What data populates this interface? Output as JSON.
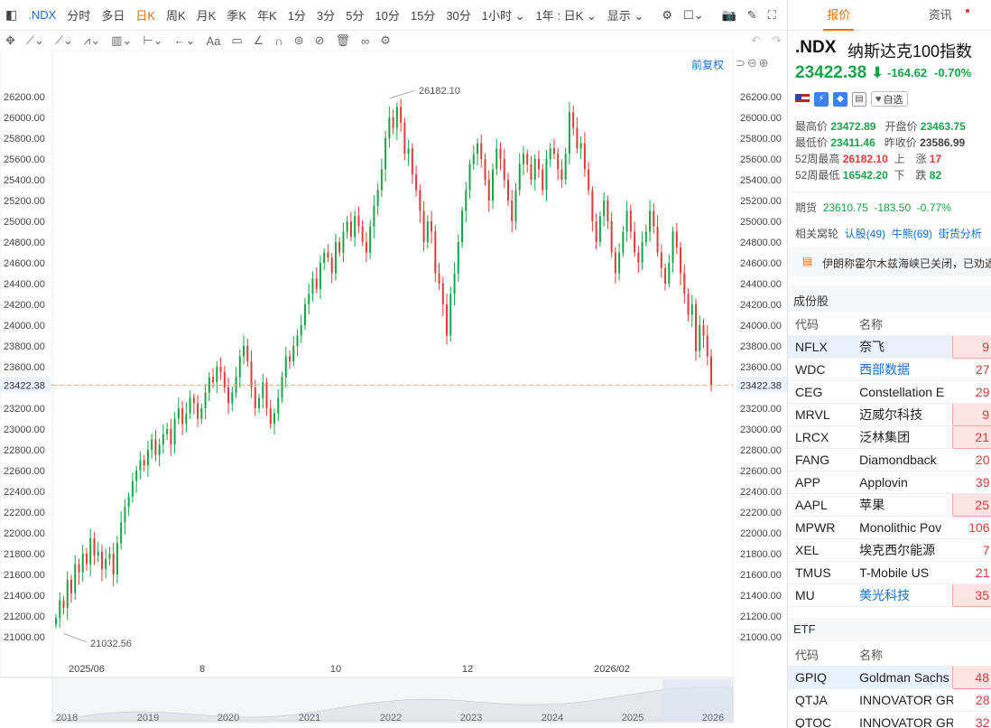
{
  "toolbar": {
    "symbol": ".NDX",
    "items": [
      "分时",
      "多日",
      "日K",
      "周K",
      "月K",
      "季K",
      "年K",
      "1分",
      "3分",
      "5分",
      "10分",
      "15分",
      "30分",
      "1小时 ⌄",
      "1年 : 日K ⌄"
    ],
    "active_item": "日K",
    "display": "显示 ⌄"
  },
  "chart": {
    "restore_label": "前复权",
    "current_price_label": "23422.38",
    "high_label": "26182.10",
    "low_label": "21032.56",
    "x_ticks": [
      "2025/06",
      "8",
      "10",
      "12",
      "2026/02"
    ],
    "overview_years": [
      "2018",
      "2019",
      "2020",
      "2021",
      "2022",
      "2023",
      "2024",
      "2025",
      "2026"
    ]
  },
  "chart_data": {
    "type": "candlestick",
    "y_ticks": [
      "26200.00",
      "26000.00",
      "25800.00",
      "25600.00",
      "25400.00",
      "25200.00",
      "25000.00",
      "24800.00",
      "24600.00",
      "24400.00",
      "24200.00",
      "24000.00",
      "23800.00",
      "23600.00",
      "23400.00",
      "23200.00",
      "23000.00",
      "22800.00",
      "22600.00",
      "22400.00",
      "22200.00",
      "22000.00",
      "21800.00",
      "21600.00",
      "21400.00",
      "21200.00",
      "21000.00"
    ],
    "ylim": [
      21000,
      26200
    ],
    "last_price": 23422.38,
    "period_high": 26182.1,
    "period_low": 21032.56,
    "closes": [
      21180,
      21350,
      21280,
      21550,
      21420,
      21700,
      21620,
      21800,
      21700,
      21950,
      21780,
      21820,
      21650,
      21750,
      21800,
      21600,
      21900,
      22100,
      22250,
      22350,
      22500,
      22600,
      22700,
      22650,
      22800,
      22900,
      22750,
      22850,
      22950,
      23000,
      22850,
      23100,
      23200,
      23050,
      23150,
      23300,
      23250,
      23100,
      23200,
      23350,
      23500,
      23450,
      23600,
      23550,
      23400,
      23250,
      23350,
      23500,
      23700,
      23800,
      23650,
      23400,
      23200,
      23300,
      23450,
      23200,
      23050,
      23150,
      23300,
      23500,
      23700,
      23650,
      23800,
      23900,
      24000,
      24200,
      24300,
      24450,
      24350,
      24600,
      24700,
      24650,
      24500,
      24800,
      24700,
      24900,
      25000,
      24850,
      25050,
      24950,
      24800,
      24700,
      24950,
      25150,
      25300,
      25500,
      25800,
      26000,
      25900,
      26100,
      25950,
      25650,
      25700,
      25450,
      25300,
      25100,
      24800,
      25000,
      24900,
      24500,
      24400,
      24200,
      23900,
      24300,
      24500,
      24800,
      25100,
      25300,
      25550,
      25650,
      25750,
      25600,
      25400,
      25200,
      25500,
      25700,
      25600,
      25400,
      25200,
      25000,
      25300,
      25550,
      25650,
      25550,
      25400,
      25600,
      25500,
      25300,
      25600,
      25700,
      25650,
      25500,
      25400,
      25650,
      26050,
      25900,
      25700,
      25750,
      25500,
      25300,
      25000,
      24800,
      25050,
      25200,
      25000,
      24700,
      24500,
      24700,
      24900,
      25100,
      24900,
      24700,
      24600,
      24800,
      24900,
      25100,
      24950,
      24700,
      24550,
      24400,
      24600,
      24900,
      24750,
      24500,
      24300,
      24100,
      24200,
      23750,
      24000,
      23900,
      23700,
      23422
    ]
  },
  "right": {
    "tabs": [
      "报价",
      "资讯"
    ],
    "code": ".NDX",
    "name": "纳斯达克100指数",
    "price": "23422.38",
    "change": "-164.62",
    "change_pct": "-0.70%",
    "watch_label": "自选",
    "stats": {
      "high_label": "最高价",
      "high": "23472.89",
      "open_label": "开盘价",
      "open": "23463.75",
      "low_label": "最低价",
      "low": "23411.46",
      "prev_label": "昨收价",
      "prev": "23586.99",
      "w52h_label": "52周最高",
      "w52h": "26182.10",
      "up_label": "上　涨",
      "up": "17",
      "w52l_label": "52周最低",
      "w52l": "16542.20",
      "down_label": "下　跌",
      "down": "82"
    },
    "futures": {
      "label": "期货",
      "price": "23610.75",
      "change": "-183.50",
      "pct": "-0.77%"
    },
    "warrants": {
      "label": "相关窝轮",
      "call": "认股(49)",
      "bull": "牛熊(69)",
      "analysis": "街货分析"
    },
    "news": "伊朗称霍尔木兹海峡已关闭，已劝返",
    "constituents": {
      "title": "成份股",
      "headers": [
        "代码",
        "名称"
      ],
      "rows": [
        {
          "code": "NFLX",
          "name": "奈飞",
          "chg": "9",
          "hl": true,
          "sel": true
        },
        {
          "code": "WDC",
          "name": "西部数据",
          "chg": "27",
          "hl": false,
          "link": true
        },
        {
          "code": "CEG",
          "name": "Constellation E",
          "chg": "29",
          "hl": false
        },
        {
          "code": "MRVL",
          "name": "迈威尔科技",
          "chg": "9",
          "hl": true
        },
        {
          "code": "LRCX",
          "name": "泛林集团",
          "chg": "21",
          "hl": true
        },
        {
          "code": "FANG",
          "name": "Diamondback",
          "chg": "20",
          "hl": false
        },
        {
          "code": "APP",
          "name": "Applovin",
          "chg": "39",
          "hl": false
        },
        {
          "code": "AAPL",
          "name": "苹果",
          "chg": "25",
          "hl": true
        },
        {
          "code": "MPWR",
          "name": "Monolithic Pov",
          "chg": "106",
          "hl": false
        },
        {
          "code": "XEL",
          "name": "埃克西尔能源",
          "chg": "7",
          "hl": false
        },
        {
          "code": "TMUS",
          "name": "T-Mobile US",
          "chg": "21",
          "hl": false
        },
        {
          "code": "MU",
          "name": "美光科技",
          "chg": "35",
          "hl": true,
          "link": true
        }
      ]
    },
    "etf": {
      "title": "ETF",
      "headers": [
        "代码",
        "名称"
      ],
      "rows": [
        {
          "code": "GPIQ",
          "name": "Goldman Sachs",
          "chg": "48",
          "hl": true,
          "sel": true
        },
        {
          "code": "QTJA",
          "name": "INNOVATOR GR",
          "chg": "28",
          "hl": false
        },
        {
          "code": "QTOC",
          "name": "INNOVATOR GR",
          "chg": "32",
          "hl": false
        }
      ]
    }
  },
  "colors": {
    "up": "#16a34a",
    "down": "#e03b3b",
    "accent": "#e8720c",
    "link": "#1a6fd4"
  }
}
